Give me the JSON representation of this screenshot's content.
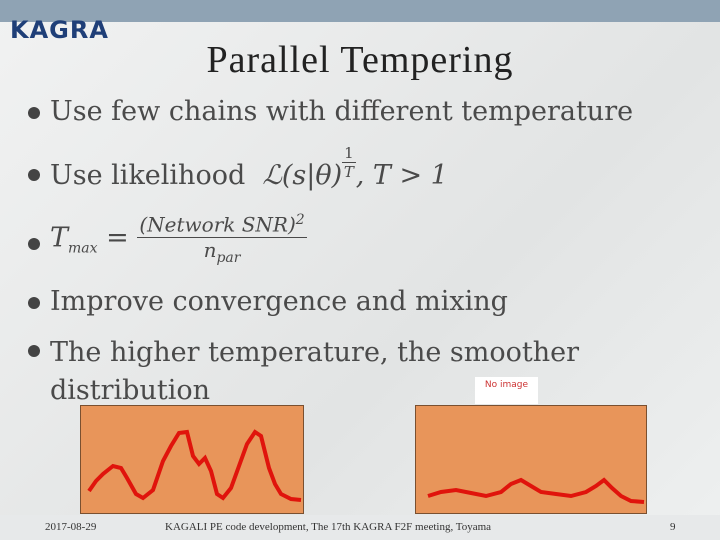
{
  "header": {
    "logo": "KAGRA",
    "title": "Parallel Tempering"
  },
  "bullets": [
    {
      "text": "Use few chains with different temperature"
    },
    {
      "text": "Use likelihood",
      "formula": {
        "base": "ℒ(s|θ)",
        "exp_num": "1",
        "exp_den": "T",
        "condition": ",  T > 1"
      }
    },
    {
      "formula": {
        "lhs": "T",
        "lhs_sub": "max",
        "eq": "=",
        "num": "(Network SNR)",
        "num_sup": "2",
        "den": "n",
        "den_sub": "par"
      }
    },
    {
      "text": "Improve convergence and mixing"
    },
    {
      "text": "The higher temperature,  the smoother distribution"
    }
  ],
  "placeholder": "No image",
  "footer": {
    "date": "2017-08-29",
    "text": "KAGALI PE code development, The 17th KAGRA F2F meeting, Toyama",
    "page": "9"
  }
}
